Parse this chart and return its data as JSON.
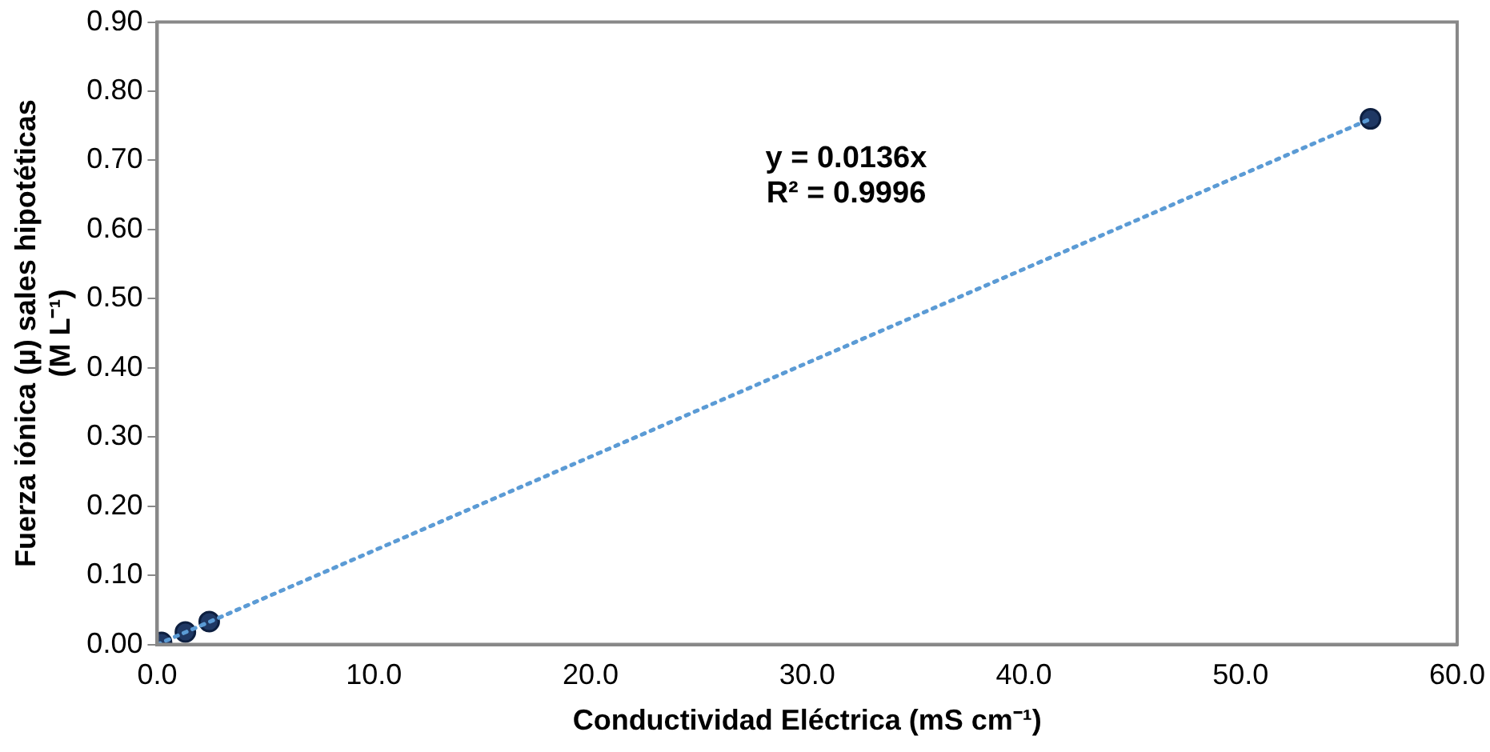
{
  "chart_data": {
    "type": "scatter",
    "xlabel": "Conductividad Eléctrica (mS cm⁻¹)",
    "ylabel": "Fuerza iónica (µ) sales hipotéticas\n(M L⁻¹)",
    "series": [
      {
        "color": "#1f3864",
        "x": [
          0.2,
          1.3,
          2.4,
          56.0
        ],
        "values": [
          0.003,
          0.018,
          0.033,
          0.76
        ]
      },
      {
        "type": "line",
        "color": "#5b9bd5",
        "line_style": "dotted",
        "marker": "none",
        "x": [
          0,
          56.0
        ],
        "values": [
          0,
          0.76
        ]
      }
    ],
    "marker": "circle",
    "xlim": [
      0,
      60
    ],
    "ylim": [
      0,
      0.9
    ],
    "xticks": [
      {
        "value": 0,
        "label": "0.0"
      },
      {
        "value": 10,
        "label": "10.0"
      },
      {
        "value": 20,
        "label": "20.0"
      },
      {
        "value": 30,
        "label": "30.0"
      },
      {
        "value": 40,
        "label": "40.0"
      },
      {
        "value": 50,
        "label": "50.0"
      },
      {
        "value": 60,
        "label": "60.0"
      }
    ],
    "yticks": [
      {
        "value": 0,
        "label": "0.00"
      },
      {
        "value": 0.1,
        "label": "0.10"
      },
      {
        "value": 0.2,
        "label": "0.20"
      },
      {
        "value": 0.3,
        "label": "0.30"
      },
      {
        "value": 0.4,
        "label": "0.40"
      },
      {
        "value": 0.5,
        "label": "0.50"
      },
      {
        "value": 0.6,
        "label": "0.60"
      },
      {
        "value": 0.7,
        "label": "0.70"
      },
      {
        "value": 0.8,
        "label": "0.80"
      },
      {
        "value": 0.9,
        "label": "0.90"
      }
    ],
    "grid": false,
    "legend": false,
    "annotations": [
      "y = 0.0136x",
      "R² = 0.9996"
    ]
  }
}
